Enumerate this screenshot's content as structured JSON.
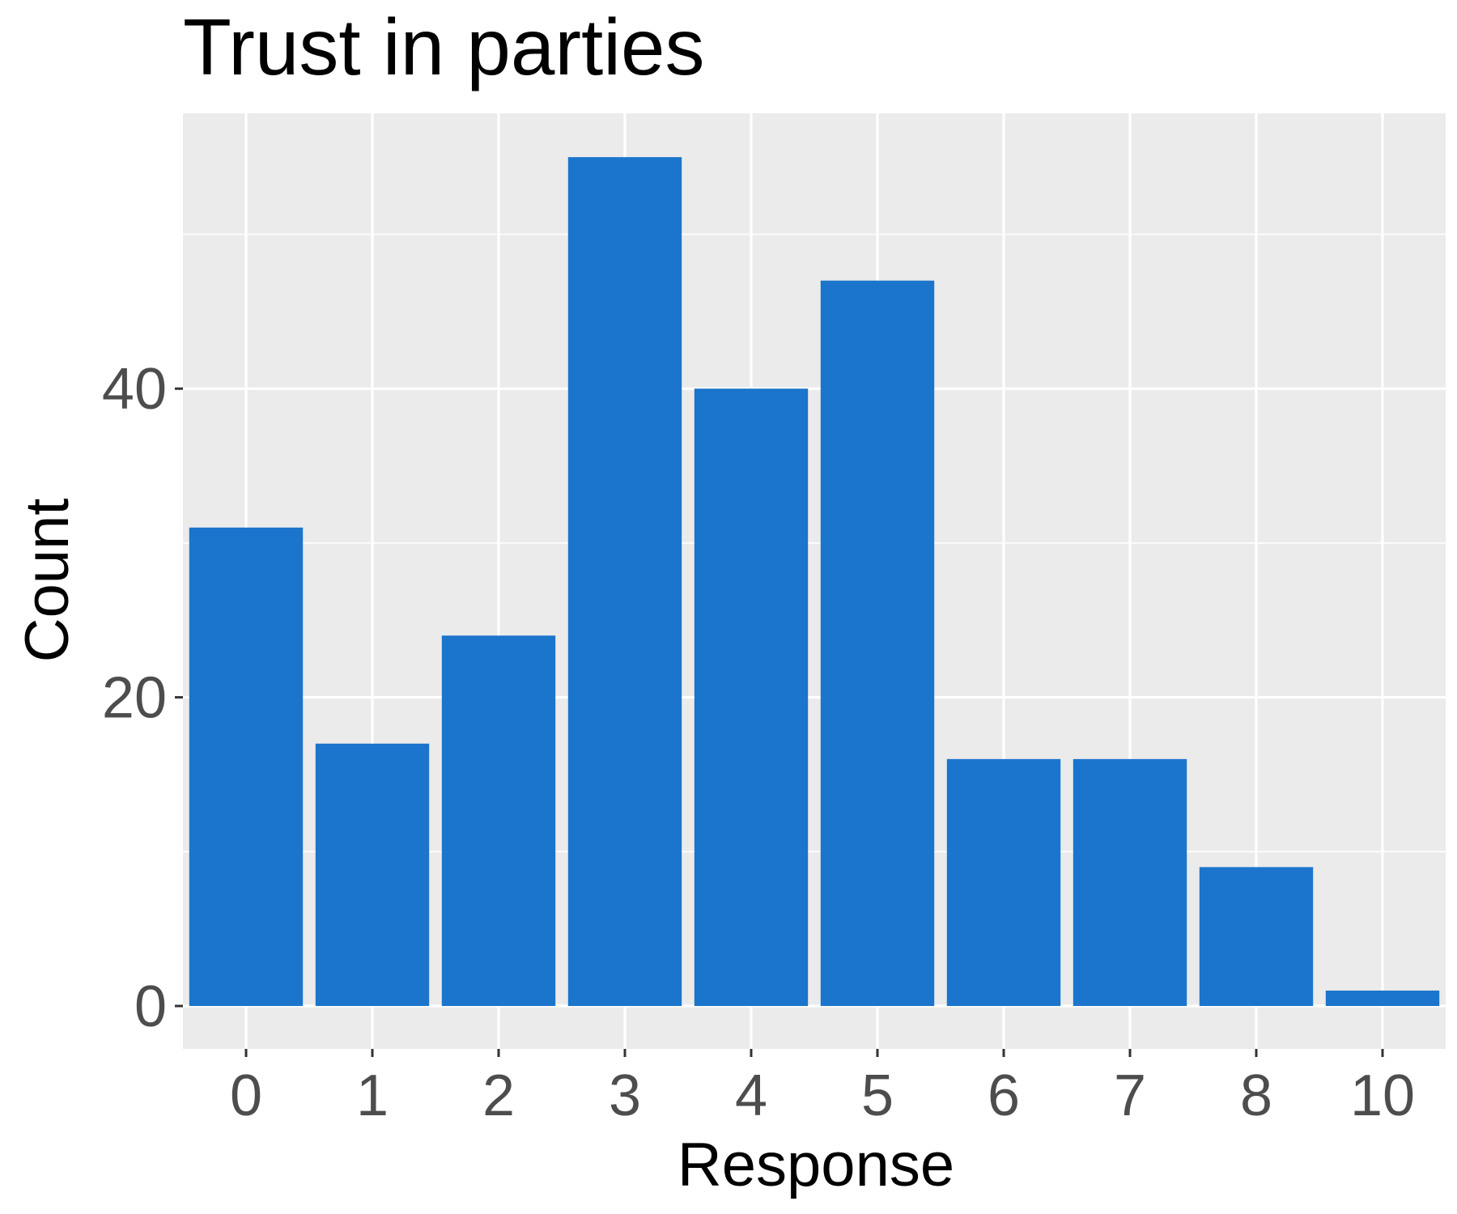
{
  "chart_data": {
    "type": "bar",
    "title": "Trust in parties",
    "xlabel": "Response",
    "ylabel": "Count",
    "categories": [
      "0",
      "1",
      "2",
      "3",
      "4",
      "5",
      "6",
      "7",
      "8",
      "10"
    ],
    "values": [
      31,
      17,
      24,
      55,
      40,
      47,
      16,
      16,
      9,
      1
    ],
    "ylim": [
      0,
      57.5
    ],
    "yticks": [
      0,
      20,
      40
    ],
    "yticks_labels": [
      "0",
      "20",
      "40"
    ],
    "grid": true,
    "legend": "none",
    "colors": {
      "bar": "#1b75cc",
      "panel": "#ebebeb",
      "grid": "#ffffff",
      "tick_text": "#4d4d4d",
      "tick_mark": "#333333"
    }
  }
}
